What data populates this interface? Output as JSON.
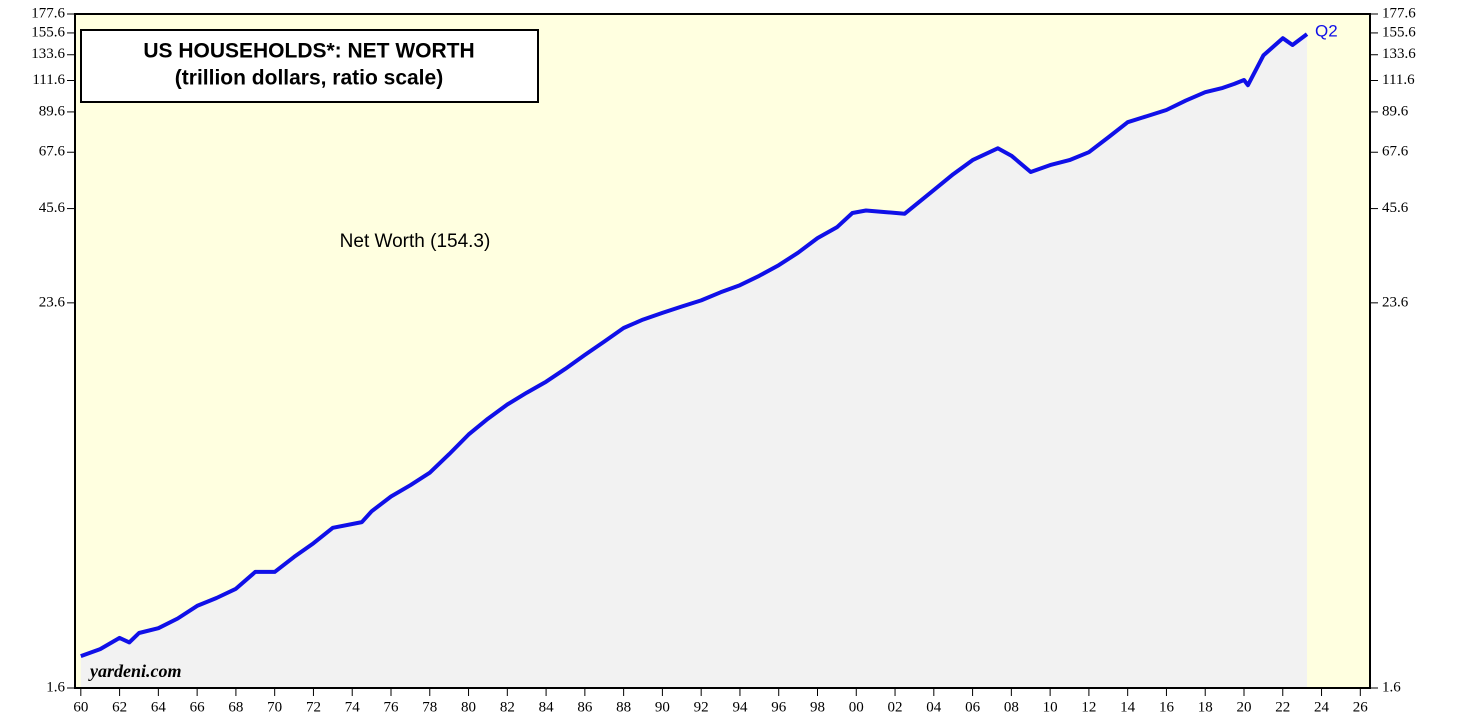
{
  "chart_data": {
    "type": "line",
    "title": "US HOUSEHOLDS*: NET WORTH",
    "subtitle": "(trillion dollars, ratio scale)",
    "annotation": "Net Worth (154.3)",
    "end_label": "Q2",
    "source": "yardeni.com",
    "log_scale": true,
    "x": [
      1960,
      1961,
      1962,
      1962.5,
      1963,
      1964,
      1965,
      1966,
      1967,
      1968,
      1969,
      1970,
      1971,
      1972,
      1973,
      1974.5,
      1975,
      1976,
      1977,
      1978,
      1979,
      1980,
      1981,
      1982,
      1983,
      1984,
      1985,
      1986,
      1987,
      1988,
      1989,
      1990,
      1991,
      1992,
      1993,
      1994,
      1995,
      1996,
      1997,
      1998,
      1999,
      1999.8,
      2000.5,
      2001.5,
      2002.5,
      2003,
      2004,
      2005,
      2006,
      2007.3,
      2008,
      2009,
      2010,
      2011,
      2012,
      2013,
      2014,
      2015,
      2016,
      2017,
      2018,
      2018.9,
      2019.5,
      2020,
      2020.2,
      2021,
      2022,
      2022.5,
      2023.25
    ],
    "series": [
      {
        "name": "Net Worth",
        "color": "#1010e8",
        "values": [
          2.0,
          2.1,
          2.27,
          2.2,
          2.35,
          2.43,
          2.6,
          2.84,
          3.0,
          3.2,
          3.6,
          3.6,
          4.0,
          4.4,
          4.9,
          5.1,
          5.5,
          6.1,
          6.6,
          7.2,
          8.2,
          9.4,
          10.5,
          11.6,
          12.6,
          13.6,
          14.9,
          16.4,
          18.0,
          19.8,
          21.0,
          22.0,
          23.0,
          24.0,
          25.4,
          26.7,
          28.5,
          30.7,
          33.5,
          37.1,
          40.0,
          44.2,
          45.0,
          44.5,
          44.0,
          46.5,
          51.9,
          58.0,
          64.0,
          69.5,
          66.0,
          58.9,
          61.8,
          64.0,
          67.6,
          75.0,
          83.4,
          87.0,
          90.8,
          97.0,
          102.8,
          106.0,
          109.0,
          112.0,
          108.0,
          133.0,
          150.0,
          143.0,
          154.3
        ]
      }
    ],
    "xlim": [
      1959.7,
      2026.5
    ],
    "ylim": [
      1.6,
      177.6
    ],
    "yticks": [
      1.6,
      23.6,
      45.6,
      67.6,
      89.6,
      111.6,
      133.6,
      155.6,
      177.6
    ],
    "xticks": [
      {
        "value": 1960,
        "label": "60"
      },
      {
        "value": 1962,
        "label": "62"
      },
      {
        "value": 1964,
        "label": "64"
      },
      {
        "value": 1966,
        "label": "66"
      },
      {
        "value": 1968,
        "label": "68"
      },
      {
        "value": 1970,
        "label": "70"
      },
      {
        "value": 1972,
        "label": "72"
      },
      {
        "value": 1974,
        "label": "74"
      },
      {
        "value": 1976,
        "label": "76"
      },
      {
        "value": 1978,
        "label": "78"
      },
      {
        "value": 1980,
        "label": "80"
      },
      {
        "value": 1982,
        "label": "82"
      },
      {
        "value": 1984,
        "label": "84"
      },
      {
        "value": 1986,
        "label": "86"
      },
      {
        "value": 1988,
        "label": "88"
      },
      {
        "value": 1990,
        "label": "90"
      },
      {
        "value": 1992,
        "label": "92"
      },
      {
        "value": 1994,
        "label": "94"
      },
      {
        "value": 1996,
        "label": "96"
      },
      {
        "value": 1998,
        "label": "98"
      },
      {
        "value": 2000,
        "label": "00"
      },
      {
        "value": 2002,
        "label": "02"
      },
      {
        "value": 2004,
        "label": "04"
      },
      {
        "value": 2006,
        "label": "06"
      },
      {
        "value": 2008,
        "label": "08"
      },
      {
        "value": 2010,
        "label": "10"
      },
      {
        "value": 2012,
        "label": "12"
      },
      {
        "value": 2014,
        "label": "14"
      },
      {
        "value": 2016,
        "label": "16"
      },
      {
        "value": 2018,
        "label": "18"
      },
      {
        "value": 2020,
        "label": "20"
      },
      {
        "value": 2022,
        "label": "22"
      },
      {
        "value": 2024,
        "label": "24"
      },
      {
        "value": 2026,
        "label": "26"
      }
    ]
  }
}
